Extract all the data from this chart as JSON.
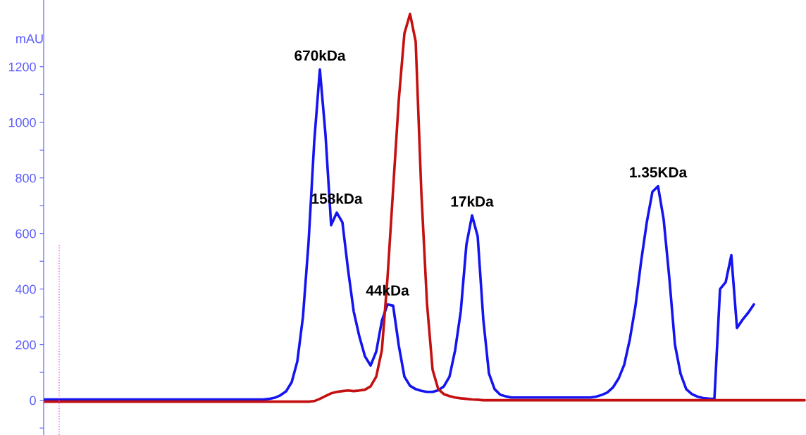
{
  "chart_data": {
    "type": "line",
    "ylabel": "mAU",
    "categories": [
      null,
      null,
      null,
      null,
      null,
      null,
      null,
      null,
      null,
      null,
      null,
      null,
      null,
      null,
      null,
      null,
      null,
      null,
      null,
      null,
      null,
      null,
      null,
      null,
      null,
      null,
      null,
      null,
      null,
      null,
      null,
      null,
      null,
      null,
      null,
      null,
      null,
      null,
      null,
      null,
      null,
      null,
      null,
      null,
      null,
      null,
      null,
      null,
      null,
      null,
      null,
      null,
      null,
      null,
      null,
      null,
      null,
      null,
      null,
      null,
      null,
      null,
      null,
      null,
      null,
      null,
      null,
      null,
      null,
      null,
      null,
      null,
      null,
      null,
      null,
      null,
      null,
      null,
      null,
      null,
      null,
      null,
      null,
      null,
      null,
      null,
      null,
      null,
      null,
      null,
      null,
      null,
      null,
      null,
      null,
      null,
      null,
      null,
      null,
      null,
      null,
      null,
      null,
      null,
      null,
      null,
      null,
      null,
      null,
      null,
      null,
      null,
      null,
      null,
      null,
      null,
      null,
      null,
      null,
      null,
      null,
      null,
      null,
      null,
      null,
      null,
      null,
      null,
      null,
      null,
      null,
      null,
      null,
      null,
      null,
      null
    ],
    "series": [
      {
        "color": "#1414f0",
        "values": [
          3,
          3,
          3,
          3,
          3,
          3,
          3,
          3,
          3,
          3,
          3,
          3,
          3,
          3,
          3,
          3,
          3,
          3,
          3,
          3,
          3,
          3,
          3,
          3,
          3,
          3,
          3,
          3,
          3,
          3,
          3,
          3,
          3,
          3,
          3,
          3,
          3,
          3,
          3,
          3,
          5,
          9,
          18,
          32,
          65,
          140,
          300,
          570,
          930,
          1190,
          955,
          630,
          675,
          640,
          470,
          320,
          230,
          158,
          125,
          175,
          286,
          345,
          340,
          197,
          85,
          52,
          40,
          34,
          30,
          30,
          36,
          50,
          85,
          180,
          320,
          560,
          665,
          590,
          290,
          96,
          40,
          20,
          14,
          10,
          10,
          10,
          10,
          10,
          10,
          10,
          10,
          10,
          10,
          10,
          10,
          10,
          10,
          10,
          13,
          19,
          28,
          46,
          78,
          128,
          220,
          340,
          500,
          640,
          750,
          770,
          650,
          440,
          200,
          95,
          40,
          22,
          13,
          8,
          6,
          5,
          400,
          425,
          522,
          260,
          290,
          315,
          345,
          null,
          null,
          null,
          null,
          null,
          null,
          null,
          null,
          null
        ]
      },
      {
        "color": "#c41010",
        "values": [
          -5,
          -5,
          -5,
          -5,
          -5,
          -5,
          -5,
          -5,
          -5,
          -5,
          -5,
          -5,
          -5,
          -5,
          -5,
          -5,
          -5,
          -5,
          -5,
          -5,
          -5,
          -5,
          -5,
          -5,
          -5,
          -5,
          -5,
          -5,
          -5,
          -5,
          -5,
          -5,
          -5,
          -5,
          -5,
          -5,
          -5,
          -5,
          -5,
          -5,
          -5,
          -5,
          -5,
          -5,
          -5,
          -5,
          -5,
          -5,
          -3,
          5,
          15,
          25,
          30,
          33,
          35,
          33,
          35,
          38,
          50,
          85,
          180,
          440,
          760,
          1080,
          1320,
          1390,
          1290,
          750,
          350,
          110,
          40,
          22,
          15,
          10,
          7,
          5,
          3,
          2,
          0,
          0,
          0,
          0,
          0,
          0,
          0,
          0,
          0,
          0,
          0,
          0,
          0,
          0,
          0,
          0,
          0,
          0,
          0,
          0,
          0,
          0,
          0,
          0,
          0,
          0,
          0,
          0,
          0,
          0,
          0,
          0,
          0,
          0,
          0,
          0,
          0,
          0,
          0,
          0,
          0,
          0,
          0,
          0,
          0,
          0,
          0,
          0,
          0,
          0,
          0,
          0,
          0,
          0,
          0,
          0,
          0,
          0
        ]
      }
    ],
    "ylim": [
      -125,
      1440
    ],
    "yticks": [
      {
        "value": -100,
        "label": null
      },
      0,
      {
        "value": 100,
        "label": null
      },
      200,
      {
        "value": 300,
        "label": null
      },
      400,
      {
        "value": 500,
        "label": null
      },
      600,
      {
        "value": 700,
        "label": null
      },
      800,
      {
        "value": 900,
        "label": null
      },
      1000,
      {
        "value": 1100,
        "label": null
      },
      1200
    ],
    "tick_labels": "y",
    "grid": false,
    "legend": false,
    "line_style": "solid",
    "marker": "none",
    "annotations": [
      {
        "text": "670kDa",
        "y": 1190
      },
      {
        "text": "158kDa",
        "y": 675
      },
      {
        "text": "44kDa",
        "y": 345
      },
      {
        "text": "17kDa",
        "y": 665
      },
      {
        "text": "1.35KDa",
        "y": 770
      }
    ]
  }
}
